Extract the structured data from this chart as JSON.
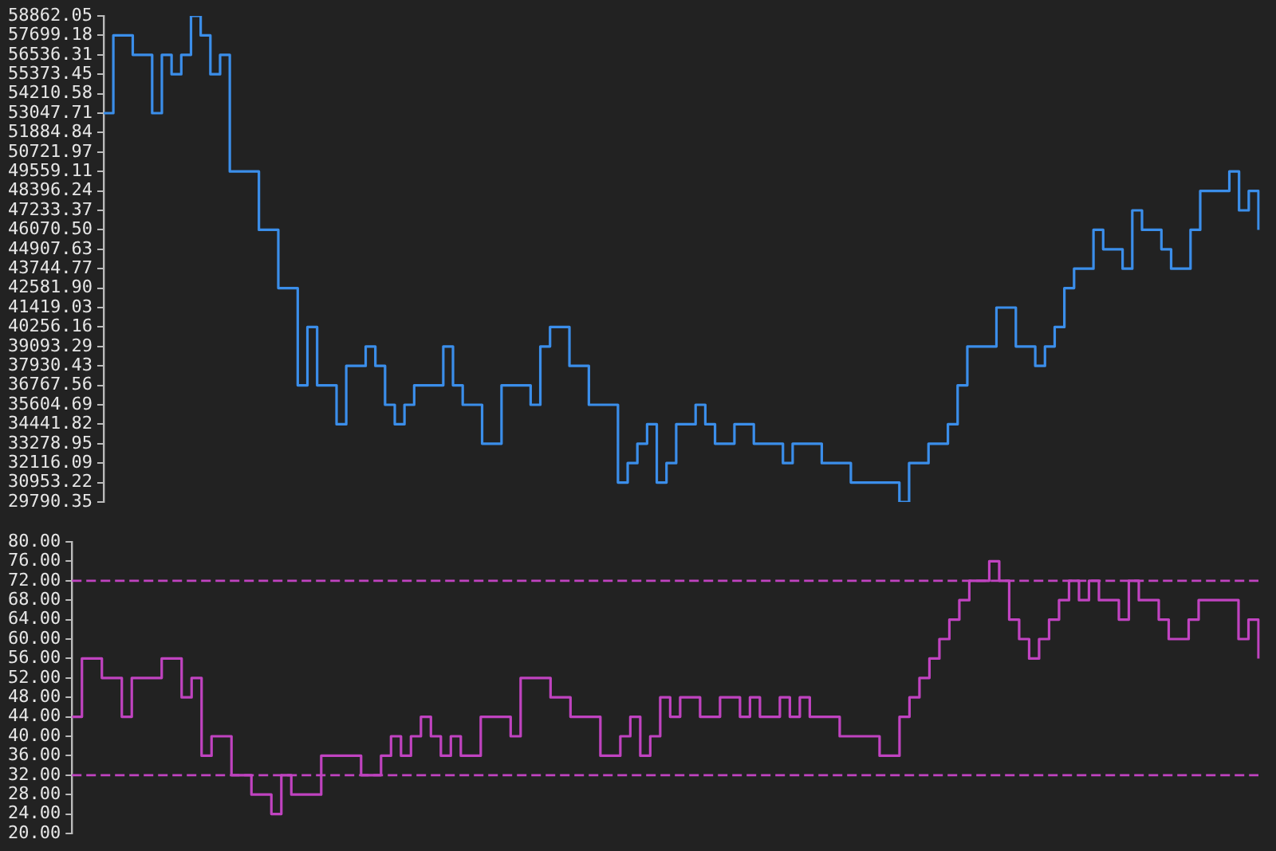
{
  "chart_data": [
    {
      "type": "step",
      "categories": [
        null,
        null,
        null,
        null,
        null,
        null,
        null,
        null,
        null,
        null,
        null,
        null,
        null,
        null,
        null,
        null,
        null,
        null,
        null,
        null,
        null,
        null,
        null,
        null,
        null,
        null,
        null,
        null,
        null,
        null,
        null,
        null,
        null,
        null,
        null,
        null,
        null,
        null,
        null,
        null,
        null,
        null,
        null,
        null,
        null,
        null,
        null,
        null,
        null,
        null,
        null,
        null,
        null,
        null,
        null,
        null,
        null,
        null,
        null,
        null,
        null,
        null,
        null,
        null,
        null,
        null,
        null,
        null,
        null,
        null,
        null,
        null,
        null,
        null,
        null,
        null,
        null,
        null,
        null,
        null,
        null,
        null,
        null,
        null,
        null,
        null,
        null,
        null,
        null,
        null,
        null,
        null,
        null,
        null,
        null,
        null,
        null,
        null,
        null,
        null,
        null,
        null,
        null,
        null,
        null,
        null,
        null,
        null,
        null,
        null,
        null,
        null,
        null,
        null,
        null,
        null,
        null,
        null,
        null,
        null
      ],
      "series": [
        {
          "color": "#3b8eea",
          "values": [
            53047.71,
            57699.18,
            57699.18,
            56536.31,
            56536.31,
            53047.71,
            56536.31,
            55373.45,
            56536.31,
            58862.05,
            57699.18,
            55373.45,
            56536.31,
            49559.11,
            49559.11,
            49559.11,
            46070.5,
            46070.5,
            42581.9,
            42581.9,
            36767.56,
            40256.16,
            36767.56,
            36767.56,
            34441.82,
            37930.43,
            37930.43,
            39093.29,
            37930.43,
            35604.69,
            34441.82,
            35604.69,
            36767.56,
            36767.56,
            36767.56,
            39093.29,
            36767.56,
            35604.69,
            35604.69,
            33278.95,
            33278.95,
            36767.56,
            36767.56,
            36767.56,
            35604.69,
            39093.29,
            40256.16,
            40256.16,
            37930.43,
            37930.43,
            35604.69,
            35604.69,
            35604.69,
            30953.22,
            32116.09,
            33278.95,
            34441.82,
            30953.22,
            32116.09,
            34441.82,
            34441.82,
            35604.69,
            34441.82,
            33278.95,
            33278.95,
            34441.82,
            34441.82,
            33278.95,
            33278.95,
            33278.95,
            32116.09,
            33278.95,
            33278.95,
            33278.95,
            32116.09,
            32116.09,
            32116.09,
            30953.22,
            30953.22,
            30953.22,
            30953.22,
            30953.22,
            29790.35,
            32116.09,
            32116.09,
            33278.95,
            33278.95,
            34441.82,
            36767.56,
            39093.29,
            39093.29,
            39093.29,
            41419.03,
            41419.03,
            39093.29,
            39093.29,
            37930.43,
            39093.29,
            40256.16,
            42581.9,
            43744.77,
            43744.77,
            46070.5,
            44907.63,
            44907.63,
            43744.77,
            47233.37,
            46070.5,
            46070.5,
            44907.63,
            43744.77,
            43744.77,
            46070.5,
            48396.24,
            48396.24,
            48396.24,
            49559.11,
            47233.37,
            48396.24,
            46070.5
          ]
        }
      ],
      "ylim": [
        29790.35,
        58862.05
      ],
      "yticks": [
        58862.05,
        57699.18,
        56536.31,
        55373.45,
        54210.58,
        53047.71,
        51884.84,
        50721.97,
        49559.11,
        48396.24,
        47233.37,
        {
          "value": 46070.5,
          "label": "46070.50"
        },
        44907.63,
        43744.77,
        {
          "value": 42581.9,
          "label": "42581.90"
        },
        41419.03,
        40256.16,
        39093.29,
        37930.43,
        36767.56,
        35604.69,
        34441.82,
        33278.95,
        32116.09,
        30953.22,
        29790.35
      ],
      "tick_labels": "y",
      "grid": false,
      "legend": false,
      "marker": "none"
    },
    {
      "type": "step",
      "categories": [
        null,
        null,
        null,
        null,
        null,
        null,
        null,
        null,
        null,
        null,
        null,
        null,
        null,
        null,
        null,
        null,
        null,
        null,
        null,
        null,
        null,
        null,
        null,
        null,
        null,
        null,
        null,
        null,
        null,
        null,
        null,
        null,
        null,
        null,
        null,
        null,
        null,
        null,
        null,
        null,
        null,
        null,
        null,
        null,
        null,
        null,
        null,
        null,
        null,
        null,
        null,
        null,
        null,
        null,
        null,
        null,
        null,
        null,
        null,
        null,
        null,
        null,
        null,
        null,
        null,
        null,
        null,
        null,
        null,
        null,
        null,
        null,
        null,
        null,
        null,
        null,
        null,
        null,
        null,
        null,
        null,
        null,
        null,
        null,
        null,
        null,
        null,
        null,
        null,
        null,
        null,
        null,
        null,
        null,
        null,
        null,
        null,
        null,
        null,
        null,
        null,
        null,
        null,
        null,
        null,
        null,
        null,
        null,
        null,
        null,
        null,
        null,
        null,
        null,
        null,
        null,
        null,
        null,
        null,
        null
      ],
      "series": [
        {
          "color": "#c043c0",
          "values": [
            44,
            56,
            56,
            52,
            52,
            44,
            52,
            52,
            52,
            56,
            56,
            48,
            52,
            36,
            40,
            40,
            32,
            32,
            28,
            28,
            24,
            32,
            28,
            28,
            28,
            36,
            36,
            36,
            36,
            32,
            32,
            36,
            40,
            36,
            40,
            44,
            40,
            36,
            40,
            36,
            36,
            44,
            44,
            44,
            40,
            52,
            52,
            52,
            48,
            48,
            44,
            44,
            44,
            36,
            36,
            40,
            44,
            36,
            40,
            48,
            44,
            48,
            48,
            44,
            44,
            48,
            48,
            44,
            48,
            44,
            44,
            48,
            44,
            48,
            44,
            44,
            44,
            40,
            40,
            40,
            40,
            36,
            36,
            44,
            48,
            52,
            56,
            60,
            64,
            68,
            72,
            72,
            76,
            72,
            64,
            60,
            56,
            60,
            64,
            68,
            72,
            68,
            72,
            68,
            68,
            64,
            72,
            68,
            68,
            64,
            60,
            60,
            64,
            68,
            68,
            68,
            68,
            60,
            64,
            56
          ]
        }
      ],
      "ylim": [
        20,
        80
      ],
      "yticks": [
        {
          "value": 80,
          "label": "80.00"
        },
        {
          "value": 76,
          "label": "76.00"
        },
        {
          "value": 72,
          "label": "72.00"
        },
        {
          "value": 68,
          "label": "68.00"
        },
        {
          "value": 64,
          "label": "64.00"
        },
        {
          "value": 60,
          "label": "60.00"
        },
        {
          "value": 56,
          "label": "56.00"
        },
        {
          "value": 52,
          "label": "52.00"
        },
        {
          "value": 48,
          "label": "48.00"
        },
        {
          "value": 44,
          "label": "44.00"
        },
        {
          "value": 40,
          "label": "40.00"
        },
        {
          "value": 36,
          "label": "36.00"
        },
        {
          "value": 32,
          "label": "32.00"
        },
        {
          "value": 28,
          "label": "28.00"
        },
        {
          "value": 24,
          "label": "24.00"
        },
        {
          "value": 20,
          "label": "20.00"
        }
      ],
      "ref_lines": [
        {
          "axis": "y",
          "value": 72,
          "color": "#c043c0",
          "line_style": "dashed"
        },
        {
          "axis": "y",
          "value": 32,
          "color": "#c043c0",
          "line_style": "dashed"
        }
      ],
      "tick_labels": "y",
      "grid": false,
      "legend": false,
      "marker": "none"
    }
  ]
}
